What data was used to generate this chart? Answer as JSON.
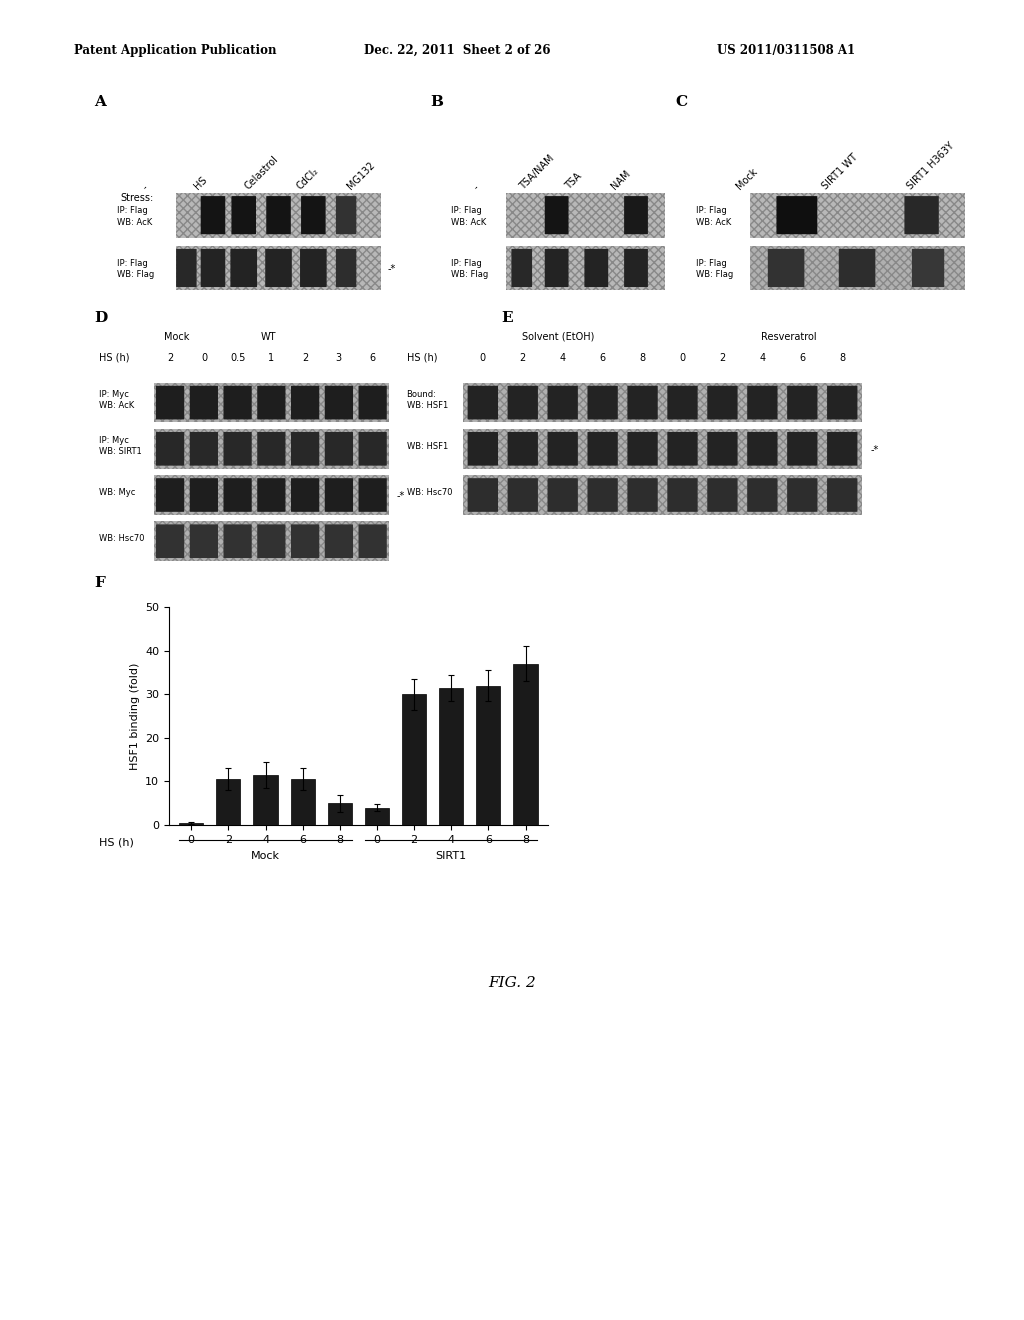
{
  "header_left": "Patent Application Publication",
  "header_mid": "Dec. 22, 2011  Sheet 2 of 26",
  "header_right": "US 2011/0311508 A1",
  "fig_label": "FIG. 2",
  "bar_values": [
    0.5,
    10.5,
    11.5,
    10.5,
    5.0,
    4.0,
    30.0,
    31.5,
    32.0,
    37.0
  ],
  "bar_errors": [
    0.3,
    2.5,
    3.0,
    2.5,
    2.0,
    0.8,
    3.5,
    3.0,
    3.5,
    4.0
  ],
  "bar_color": "#1a1a1a",
  "bar_xlabels": [
    "0",
    "2",
    "4",
    "6",
    "8",
    "0",
    "2",
    "4",
    "6",
    "8"
  ],
  "group_labels": [
    "Mock",
    "SIRT1"
  ],
  "ylabel": "HSF1 binding (fold)",
  "ylim": [
    0,
    50
  ],
  "yticks": [
    0,
    10,
    20,
    30,
    40,
    50
  ],
  "background_color": "#ffffff"
}
